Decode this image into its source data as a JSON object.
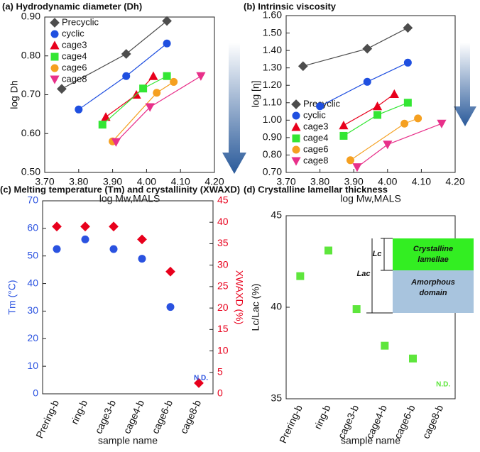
{
  "chart_data": [
    {
      "type": "line",
      "title": "(a) Hydrodynamic diameter (Dh)",
      "x_label": "log Mw,MALS",
      "y_label": "log Dh",
      "xlim": [
        3.7,
        4.2
      ],
      "xticks": [
        {
          "value": 3.7,
          "label": "3.70"
        },
        {
          "value": 3.8,
          "label": "3.80"
        },
        {
          "value": 3.9,
          "label": "3.90"
        },
        {
          "value": 4.0,
          "label": "4.00"
        },
        {
          "value": 4.1,
          "label": "4.10"
        },
        {
          "value": 4.2,
          "label": "4.20"
        }
      ],
      "ylim": [
        0.5,
        0.9
      ],
      "yticks": [
        {
          "value": 0.5,
          "label": "0.50"
        },
        {
          "value": 0.6,
          "label": "0.60"
        },
        {
          "value": 0.7,
          "label": "0.70"
        },
        {
          "value": 0.8,
          "label": "0.80"
        },
        {
          "value": 0.9,
          "label": "0.90"
        }
      ],
      "legend": "upper left",
      "series": [
        {
          "name": "Precyclic",
          "color": "#4d4d4d",
          "marker": "diamond",
          "x": [
            3.75,
            3.94,
            4.06
          ],
          "values": [
            0.715,
            0.805,
            0.89
          ]
        },
        {
          "name": "cyclic",
          "color": "#1f4fe0",
          "marker": "circle",
          "x": [
            3.8,
            3.94,
            4.06
          ],
          "values": [
            0.662,
            0.748,
            0.832
          ]
        },
        {
          "name": "cage3",
          "color": "#e8001c",
          "marker": "triangle",
          "x": [
            3.88,
            3.97,
            4.02
          ],
          "values": [
            0.643,
            0.7,
            0.748
          ]
        },
        {
          "name": "cage4",
          "color": "#33e633",
          "marker": "square",
          "x": [
            3.87,
            3.99,
            4.06
          ],
          "values": [
            0.623,
            0.716,
            0.748
          ]
        },
        {
          "name": "cage6",
          "color": "#f5a020",
          "marker": "circle",
          "x": [
            3.9,
            4.03,
            4.08
          ],
          "values": [
            0.58,
            0.705,
            0.733
          ]
        },
        {
          "name": "cage8",
          "color": "#e8308a",
          "marker": "triangle-down",
          "x": [
            3.91,
            4.01,
            4.16
          ],
          "values": [
            0.578,
            0.668,
            0.748
          ]
        }
      ]
    },
    {
      "type": "line",
      "title": "(b) Intrinsic viscosity",
      "x_label": "log Mw,MALS",
      "y_label": "log [η]",
      "xlim": [
        3.7,
        4.2
      ],
      "xticks": [
        {
          "value": 3.7,
          "label": "3.70"
        },
        {
          "value": 3.8,
          "label": "3.80"
        },
        {
          "value": 3.9,
          "label": "3.90"
        },
        {
          "value": 4.0,
          "label": "4.00"
        },
        {
          "value": 4.1,
          "label": "4.10"
        },
        {
          "value": 4.2,
          "label": "4.20"
        }
      ],
      "ylim": [
        0.7,
        1.6
      ],
      "yticks": [
        {
          "value": 0.7,
          "label": "0.70"
        },
        {
          "value": 0.8,
          "label": "0.80"
        },
        {
          "value": 0.9,
          "label": "0.90"
        },
        {
          "value": 1.0,
          "label": "1.00"
        },
        {
          "value": 1.1,
          "label": "1.10"
        },
        {
          "value": 1.2,
          "label": "1.20"
        },
        {
          "value": 1.3,
          "label": "1.30"
        },
        {
          "value": 1.4,
          "label": "1.40"
        },
        {
          "value": 1.5,
          "label": "1.50"
        },
        {
          "value": 1.6,
          "label": "1.60"
        }
      ],
      "legend": "lower left",
      "series": [
        {
          "name": "Precyclic",
          "color": "#4d4d4d",
          "marker": "diamond",
          "x": [
            3.75,
            3.94,
            4.06
          ],
          "values": [
            1.31,
            1.41,
            1.53
          ]
        },
        {
          "name": "cyclic",
          "color": "#1f4fe0",
          "marker": "circle",
          "x": [
            3.8,
            3.94,
            4.06
          ],
          "values": [
            1.08,
            1.22,
            1.33
          ]
        },
        {
          "name": "cage3",
          "color": "#e8001c",
          "marker": "triangle",
          "x": [
            3.87,
            3.97,
            4.02
          ],
          "values": [
            0.97,
            1.08,
            1.15
          ]
        },
        {
          "name": "cage4",
          "color": "#33e633",
          "marker": "square",
          "x": [
            3.87,
            3.97,
            4.06
          ],
          "values": [
            0.91,
            1.03,
            1.1
          ]
        },
        {
          "name": "cage6",
          "color": "#f5a020",
          "marker": "circle",
          "x": [
            3.89,
            4.05,
            4.09
          ],
          "values": [
            0.77,
            0.98,
            1.01
          ]
        },
        {
          "name": "cage8",
          "color": "#e8308a",
          "marker": "triangle-down",
          "x": [
            3.91,
            4.0,
            4.16
          ],
          "values": [
            0.73,
            0.86,
            0.98
          ]
        }
      ]
    },
    {
      "type": "scatter",
      "title": "(c) Melting temperature (Tm) and crystallinity (XWAXD)",
      "x_label": "sample name",
      "y_label": "Tm (°C)",
      "y2_label": "XWAXD (%)",
      "categories": [
        "Prering-b",
        "ring-b",
        "cage3-b",
        "cage4-b",
        "cage6-b",
        "cage8-b"
      ],
      "ylim": [
        0,
        70
      ],
      "yticks": [
        0,
        10,
        20,
        30,
        40,
        50,
        60,
        70
      ],
      "y2lim": [
        0,
        45
      ],
      "y2ticks": [
        0,
        5,
        10,
        15,
        20,
        25,
        30,
        35,
        40,
        45
      ],
      "annotation": "N.D.",
      "series": [
        {
          "name": "Tm",
          "color": "#2a52e0",
          "marker": "circle",
          "values": [
            52.5,
            56,
            52.5,
            49,
            31.5,
            null
          ]
        },
        {
          "name": "XWAXD",
          "color": "#e8001c",
          "marker": "diamond",
          "axis": "y2",
          "values": [
            39,
            39,
            39,
            36,
            28.5,
            2.5
          ]
        }
      ]
    },
    {
      "type": "scatter",
      "title": "(d) Crystalline lamellar thickness",
      "x_label": "sample name",
      "y_label": "Lc/Lac (%)",
      "categories": [
        "Prering-b",
        "ring-b",
        "cage3-b",
        "cage4-b",
        "cage6-b",
        "cage8-b"
      ],
      "ylim": [
        35,
        45
      ],
      "yticks": [
        35,
        40,
        45
      ],
      "annotation": "N.D.",
      "inset": {
        "crystalline": [
          "Crystalline",
          "lamellae"
        ],
        "amorphous": [
          "Amorphous",
          "domain"
        ],
        "lc": "Lc",
        "lac": "Lac"
      },
      "series": [
        {
          "name": "Lc/Lac",
          "color": "#5ee63c",
          "marker": "square",
          "values": [
            41.7,
            43.1,
            39.9,
            37.9,
            37.2,
            null
          ]
        }
      ]
    }
  ]
}
